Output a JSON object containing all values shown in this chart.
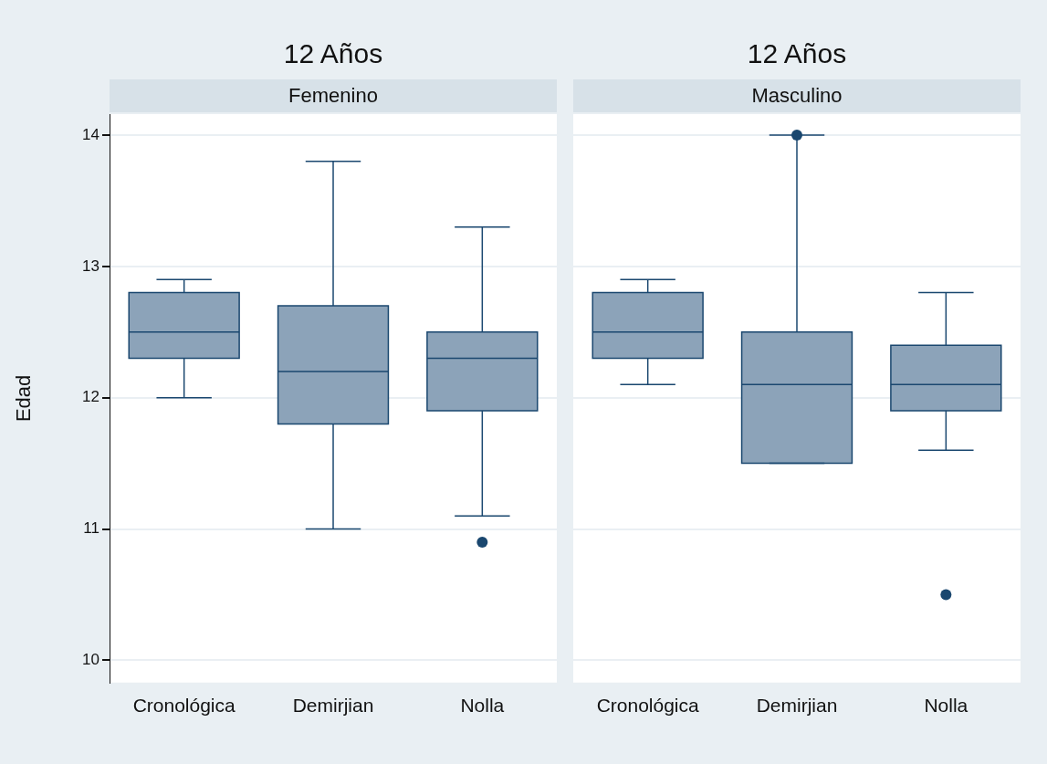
{
  "chart_data": [
    {
      "type": "box",
      "title": "12 Años",
      "subtitle": "Femenino",
      "ylabel": "Edad",
      "categories": [
        "Cronológica",
        "Demirjian",
        "Nolla"
      ],
      "color": "#8ca3b9",
      "ylim": [
        9.83,
        14.16
      ],
      "yticks": [
        10,
        11,
        12,
        13,
        14
      ],
      "grid": "y",
      "boxes": [
        {
          "low": 12.0,
          "q1": 12.3,
          "median": 12.5,
          "q3": 12.8,
          "high": 12.9
        },
        {
          "low": 11.0,
          "q1": 11.8,
          "median": 12.2,
          "q3": 12.7,
          "high": 13.8
        },
        {
          "low": 11.1,
          "q1": 11.9,
          "median": 12.3,
          "q3": 12.5,
          "high": 13.3,
          "outliers": [
            10.9
          ]
        }
      ]
    },
    {
      "type": "box",
      "title": "12 Años",
      "subtitle": "Masculino",
      "categories": [
        "Cronológica",
        "Demirjian",
        "Nolla"
      ],
      "color": "#8ca3b9",
      "ylim": [
        9.83,
        14.16
      ],
      "yticks": [
        10,
        11,
        12,
        13,
        14
      ],
      "grid": "y",
      "tick_labels": "x",
      "boxes": [
        {
          "low": 12.1,
          "q1": 12.3,
          "median": 12.5,
          "q3": 12.8,
          "high": 12.9
        },
        {
          "low": 11.5,
          "q1": 11.5,
          "median": 12.1,
          "q3": 12.5,
          "high": 14.0,
          "outliers": [
            14.0
          ]
        },
        {
          "low": 11.6,
          "q1": 11.9,
          "median": 12.1,
          "q3": 12.4,
          "high": 12.8,
          "outliers": [
            10.5
          ]
        }
      ]
    }
  ]
}
